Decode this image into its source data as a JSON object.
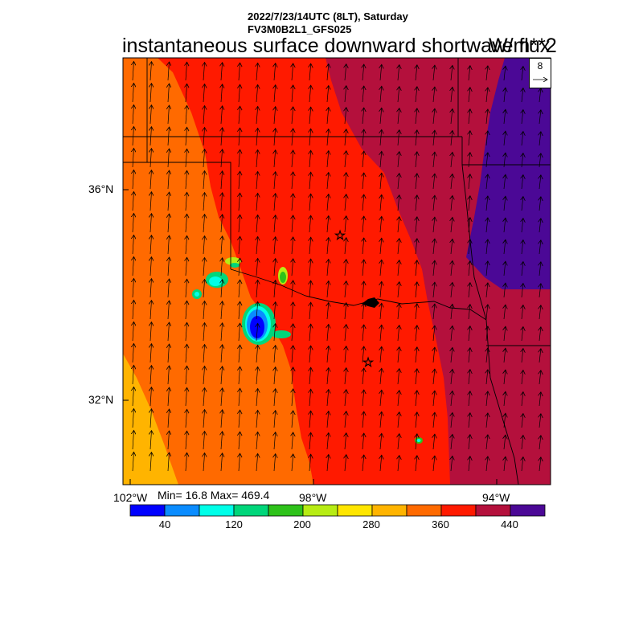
{
  "header": {
    "datetime_line": "2022/7/23/14UTC (8LT), Saturday",
    "model_line": "FV3M0B2L1_GFS025"
  },
  "title": {
    "field": "instantaneous surface downward shortwave flux",
    "units": "W/m**2"
  },
  "vector_reference": {
    "value": "8"
  },
  "axes": {
    "lat_labels": [
      "36°N",
      "32°N"
    ],
    "lon_labels": [
      "102°W",
      "98°W",
      "94°W"
    ]
  },
  "stats": {
    "text": "Min= 16.8 Max= 469.4"
  },
  "colorbar": {
    "labels": [
      "40",
      "120",
      "200",
      "280",
      "360",
      "440"
    ],
    "colors": [
      "#0000ff",
      "#0a8cff",
      "#00ffe8",
      "#00d67a",
      "#2ec21a",
      "#b7ec14",
      "#ffe600",
      "#ffb400",
      "#ff6a00",
      "#ff1a00",
      "#b4103c",
      "#4b0896"
    ]
  },
  "map_colors": {
    "c200_240": "#b7ec14",
    "c280_320": "#ffb400",
    "c320_360": "#ff6a00",
    "c360_400": "#ff1a00",
    "c400_440": "#b4103c",
    "c440_plus": "#4b0896"
  }
}
